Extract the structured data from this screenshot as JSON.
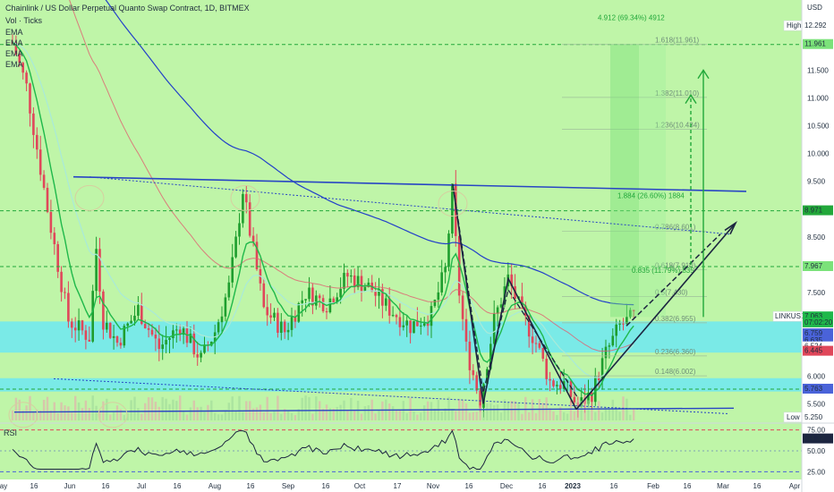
{
  "header": {
    "title": "Chainlink / US Dollar Perpetual Quanto Swap Contract, 1D, BITMEX",
    "indicators": [
      "Vol · Ticks",
      "EMA",
      "EMA",
      "EMA",
      "EMA"
    ]
  },
  "colors": {
    "background": "#bff5a8",
    "pane_bg": "#bff5a8",
    "candle_up": "#1e9e2e",
    "candle_down": "#e0475a",
    "ema_blue": "#2340c9",
    "ema_red": "#e06070",
    "ema_green": "#1fb84a",
    "ema_cyan": "#a9ead9",
    "zone": "#6de8f2",
    "trendline": "#2845c4",
    "pattern": "#1c2540",
    "target": "#22a83a",
    "price_tag": "#4a63d9"
  },
  "chart_data": {
    "type": "candlestick",
    "symbol": "LINKUSD",
    "currency": "USD",
    "x_labels": [
      "ay",
      "16",
      "Jun",
      "16",
      "Jul",
      "16",
      "Aug",
      "16",
      "Sep",
      "16",
      "Oct",
      "17",
      "Nov",
      "16",
      "Dec",
      "16",
      "2023",
      "16",
      "Feb",
      "16",
      "Mar",
      "16",
      "Apr"
    ],
    "y_ticks": [
      5.25,
      5.5,
      6.0,
      6.5,
      7.0,
      7.5,
      8.0,
      8.5,
      9.0,
      9.5,
      10.0,
      10.5,
      11.0,
      11.5,
      12.0
    ],
    "y_range": [
      5.2,
      12.6
    ],
    "key_points": [
      {
        "date": "May",
        "price": 12.0
      },
      {
        "date": "Jun 3",
        "price": 9.45
      },
      {
        "date": "Aug 16",
        "price": 9.45
      },
      {
        "date": "Nov 8",
        "price": 9.4
      },
      {
        "date": "Nov 21",
        "price": 5.55
      },
      {
        "date": "Dec 5",
        "price": 7.75
      },
      {
        "date": "Dec 30",
        "price": 5.45
      },
      {
        "date": "Jan 26",
        "price": 7.06
      }
    ],
    "price_labels": [
      {
        "label": "High",
        "value": "12.292"
      },
      {
        "label": "",
        "value": "11.961"
      },
      {
        "label": "",
        "value": "8.971"
      },
      {
        "label": "",
        "value": "7.967"
      },
      {
        "label": "LINKUSD",
        "value": "7.063"
      },
      {
        "label": "",
        "value": "07:02:20"
      },
      {
        "label": "",
        "value": "6.759"
      },
      {
        "label": "",
        "value": "6.635"
      },
      {
        "label": "",
        "value": "6.524"
      },
      {
        "label": "",
        "value": "6.445"
      },
      {
        "label": "",
        "value": "5.763"
      },
      {
        "label": "Low",
        "value": "5.250"
      }
    ],
    "fib_levels": [
      {
        "label": "1.618(11.961)",
        "value": 11.961
      },
      {
        "label": "1.382(11.010)",
        "value": 11.01
      },
      {
        "label": "1.236(10.434)",
        "value": 10.434
      },
      {
        "label": "0.786(8.601)",
        "value": 8.601
      },
      {
        "label": "0.618(7.910)",
        "value": 7.91
      },
      {
        "label": "0.5(7.430)",
        "value": 7.43
      },
      {
        "label": "0.382(6.955)",
        "value": 6.955
      },
      {
        "label": "0.236(6.360)",
        "value": 6.36
      },
      {
        "label": "0.148(6.002)",
        "value": 6.002
      }
    ],
    "target_lines": [
      11.961,
      8.971,
      7.967,
      5.763
    ],
    "measurements": [
      {
        "text": "4.912 (69.34%) 4912"
      },
      {
        "text": "1.884 (26.60%) 1884"
      },
      {
        "text": "0.835 (11.79%) 835"
      }
    ],
    "zones": [
      {
        "from": 6.42,
        "to": 6.98
      },
      {
        "from": 5.72,
        "to": 5.96
      }
    ],
    "rsi": {
      "label": "RSI",
      "ticks": [
        75.0,
        50.0,
        25.0
      ],
      "current": "64.32",
      "y_range": [
        20,
        80
      ]
    }
  }
}
